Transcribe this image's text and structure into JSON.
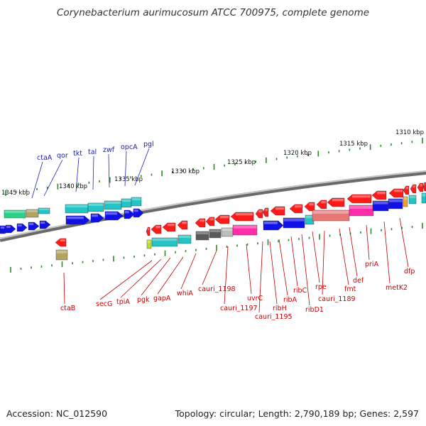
{
  "title": "Corynebacterium aurimucosum ATCC 700975, complete genome",
  "footer": {
    "accession": "Accession: NC_012590",
    "summary": "Topology: circular; Length: 2,790,189 bp; Genes: 2,597"
  },
  "colors": {
    "backbone": "#888888",
    "tick": "#2a8a2a",
    "label_top": "#1a1ab0",
    "label_bottom": "#c80000",
    "leader_top": "#2020c0",
    "leader_bottom": "#c00000",
    "red": "#ff1a1a",
    "blue": "#1010e8",
    "cyan": "#22c4c4",
    "green": "#2ecf8a",
    "olive": "#b2a460",
    "gray": "#5a5a5a",
    "lightgray": "#bdbdbd",
    "magenta": "#ff2ea8",
    "salmon": "#e87878",
    "orange": "#f0a030",
    "lime": "#b8e030"
  },
  "scale_labels": [
    "1310 kbp",
    "1315 kbp",
    "1320 kbp",
    "1325 kbp",
    "1330 kbp",
    "1335 kbp",
    "1340 kbp",
    "1345 kbp"
  ],
  "genes_top": [
    "pgl",
    "opcA",
    "zwf",
    "tal",
    "tkt",
    "qor",
    "ctaA"
  ],
  "genes_bottom": [
    "ctaB",
    "secG",
    "tpiA",
    "pgk",
    "gapA",
    "whiA",
    "cauri_1198",
    "cauri_1197",
    "uvrC",
    "cauri_1195",
    "ribH",
    "ribA",
    "ribC",
    "ribD1",
    "rpe",
    "cauri_1189",
    "fmt",
    "def",
    "priA",
    "metK2",
    "dfp"
  ]
}
